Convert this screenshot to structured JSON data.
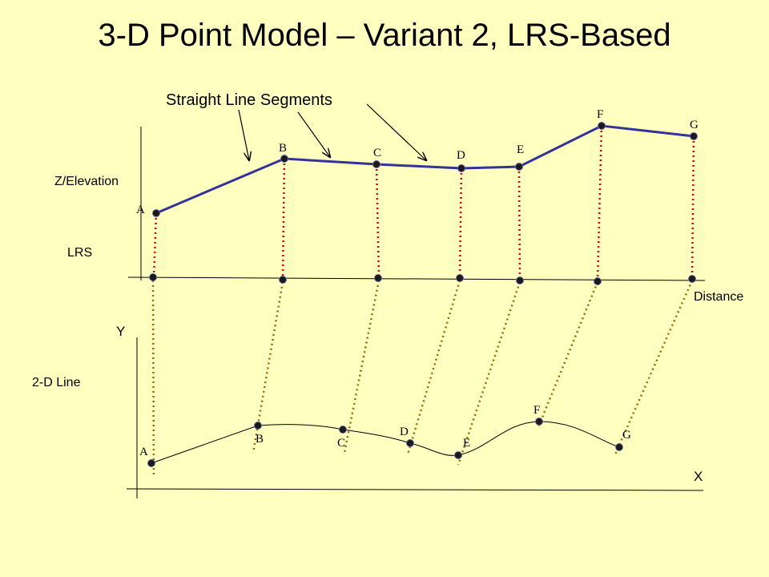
{
  "title": "3-D Point Model – Variant 2, LRS-Based",
  "callout_label": "Straight Line Segments",
  "top_panel": {
    "y_axis_label": "Z/Elevation",
    "lrs_label": "LRS",
    "x_axis_label": "Distance",
    "points": [
      "A",
      "B",
      "C",
      "D",
      "E",
      "F",
      "G"
    ]
  },
  "bottom_panel": {
    "y_axis_label": "Y",
    "x_axis_label": "X",
    "line_label": "2-D Line",
    "points": [
      "A",
      "B",
      "C",
      "D",
      "E",
      "F",
      "G"
    ]
  },
  "colors": {
    "background": "#ffffc0",
    "profile_line": "#333399",
    "vertical_dotted": "#dd0000",
    "projection_dotted": "#996600",
    "point": "#1a1a1a"
  }
}
